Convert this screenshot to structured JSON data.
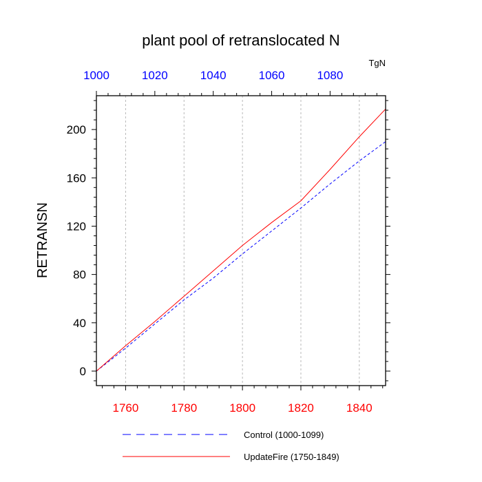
{
  "chart_data": {
    "type": "line",
    "title": "plant pool of retranslocated N",
    "units_label": "TgN",
    "ylabel": "RETRANSN",
    "ylim": [
      -12,
      228
    ],
    "yticks": [
      0,
      40,
      80,
      120,
      160,
      200
    ],
    "bottom_axis": {
      "range": [
        1750,
        1849
      ],
      "ticks": [
        1760,
        1780,
        1800,
        1820,
        1840
      ],
      "color": "#ff0000"
    },
    "top_axis": {
      "range": [
        1000,
        1099
      ],
      "ticks": [
        1000,
        1020,
        1040,
        1060,
        1080
      ],
      "color": "#0000ff"
    },
    "vertical_grid": [
      1760,
      1780,
      1800,
      1820,
      1840
    ],
    "series": [
      {
        "name": "Control (1000-1099)",
        "color": "#0000ff",
        "style": "dashed",
        "axis": "top",
        "x": [
          1000,
          1010,
          1020,
          1030,
          1040,
          1050,
          1060,
          1070,
          1080,
          1090,
          1099
        ],
        "y": [
          0,
          19,
          39,
          59,
          77,
          97,
          116,
          135,
          155,
          174,
          190
        ]
      },
      {
        "name": "UpdateFire (1750-1849)",
        "color": "#ff0000",
        "style": "solid",
        "axis": "bottom",
        "x": [
          1750,
          1760,
          1770,
          1780,
          1790,
          1800,
          1810,
          1820,
          1830,
          1840,
          1849
        ],
        "y": [
          0,
          21,
          41,
          62,
          83,
          104,
          123,
          141,
          167,
          194,
          217
        ]
      }
    ]
  }
}
